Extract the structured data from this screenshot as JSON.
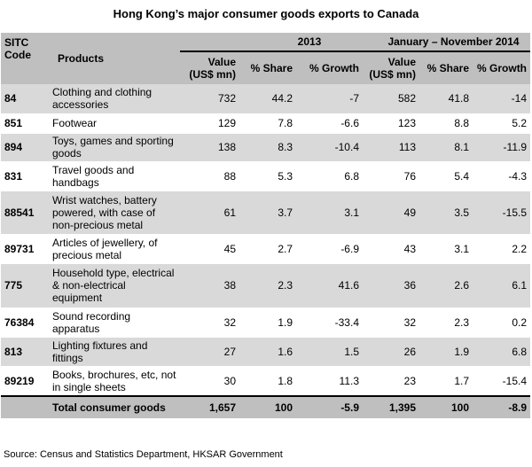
{
  "title": "Hong Kong’s major consumer goods exports to Canada",
  "headers": {
    "code": "SITC Code",
    "products": "Products",
    "period1": "2013",
    "period2": "January – November 2014",
    "value": "Value (US$ mn)",
    "share": "% Share",
    "growth": "% Growth"
  },
  "rows": [
    {
      "code": "84",
      "product": "Clothing and clothing accessories",
      "v1": "732",
      "s1": "44.2",
      "g1": "-7",
      "v2": "582",
      "s2": "41.8",
      "g2": "-14"
    },
    {
      "code": "851",
      "product": "Footwear",
      "v1": "129",
      "s1": "7.8",
      "g1": "-6.6",
      "v2": "123",
      "s2": "8.8",
      "g2": "5.2"
    },
    {
      "code": "894",
      "product": "Toys, games and sporting goods",
      "v1": "138",
      "s1": "8.3",
      "g1": "-10.4",
      "v2": "113",
      "s2": "8.1",
      "g2": "-11.9"
    },
    {
      "code": "831",
      "product": "Travel goods and handbags",
      "v1": "88",
      "s1": "5.3",
      "g1": "6.8",
      "v2": "76",
      "s2": "5.4",
      "g2": "-4.3"
    },
    {
      "code": "88541",
      "product": "Wrist watches, battery powered, with case of non-precious metal",
      "v1": "61",
      "s1": "3.7",
      "g1": "3.1",
      "v2": "49",
      "s2": "3.5",
      "g2": "-15.5"
    },
    {
      "code": "89731",
      "product": "Articles of jewellery, of precious metal",
      "v1": "45",
      "s1": "2.7",
      "g1": "-6.9",
      "v2": "43",
      "s2": "3.1",
      "g2": "2.2"
    },
    {
      "code": "775",
      "product": "Household type, electrical & non-electrical equipment",
      "v1": "38",
      "s1": "2.3",
      "g1": "41.6",
      "v2": "36",
      "s2": "2.6",
      "g2": "6.1"
    },
    {
      "code": "76384",
      "product": "Sound recording apparatus",
      "v1": "32",
      "s1": "1.9",
      "g1": "-33.4",
      "v2": "32",
      "s2": "2.3",
      "g2": "0.2"
    },
    {
      "code": "813",
      "product": "Lighting fixtures and fittings",
      "v1": "27",
      "s1": "1.6",
      "g1": "1.5",
      "v2": "26",
      "s2": "1.9",
      "g2": "6.8"
    },
    {
      "code": "89219",
      "product": "Books, brochures, etc, not in single sheets",
      "v1": "30",
      "s1": "1.8",
      "g1": "11.3",
      "v2": "23",
      "s2": "1.7",
      "g2": "-15.4"
    }
  ],
  "total": {
    "label": "Total consumer goods",
    "v1": "1,657",
    "s1": "100",
    "g1": "-5.9",
    "v2": "1,395",
    "s2": "100",
    "g2": "-8.9"
  },
  "source": "Source: Census and Statistics Department, HKSAR Government"
}
